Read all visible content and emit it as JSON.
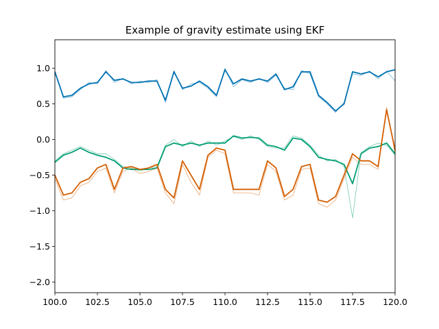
{
  "chart_data": {
    "type": "line",
    "title": "Example of gravity estimate using EKF",
    "xlabel": "",
    "ylabel": "",
    "xlim": [
      100.0,
      120.0
    ],
    "ylim": [
      -2.15,
      1.4
    ],
    "x_ticks": [
      100.0,
      102.5,
      105.0,
      107.5,
      110.0,
      112.5,
      115.0,
      117.5,
      120.0
    ],
    "x_tick_labels": [
      "100.0",
      "102.5",
      "105.0",
      "107.5",
      "110.0",
      "112.5",
      "115.0",
      "117.5",
      "120.0"
    ],
    "y_ticks": [
      1.0,
      0.5,
      0.0,
      -0.5,
      -1.0,
      -1.5,
      -2.0
    ],
    "y_tick_labels": [
      "1.0",
      "0.5",
      "0.0",
      "−0.5",
      "−1.0",
      "−1.5",
      "−2.0"
    ],
    "grid": false,
    "legend": "none",
    "x": [
      100.0,
      100.5,
      101.0,
      101.5,
      102.0,
      102.5,
      103.0,
      103.5,
      104.0,
      104.5,
      105.0,
      105.5,
      106.0,
      106.5,
      107.0,
      107.5,
      108.0,
      108.5,
      109.0,
      109.5,
      110.0,
      110.5,
      111.0,
      111.5,
      112.0,
      112.5,
      113.0,
      113.5,
      114.0,
      114.5,
      115.0,
      115.5,
      116.0,
      116.5,
      117.0,
      117.5,
      118.0,
      118.5,
      119.0,
      119.5,
      120.0
    ],
    "series": [
      {
        "color": "#0072b2",
        "estimate": [
          0.95,
          0.6,
          0.62,
          0.72,
          0.78,
          0.8,
          0.95,
          0.83,
          0.85,
          0.8,
          0.8,
          0.82,
          0.82,
          0.55,
          0.95,
          0.72,
          0.75,
          0.82,
          0.74,
          0.62,
          0.98,
          0.78,
          0.85,
          0.82,
          0.85,
          0.82,
          0.92,
          0.7,
          0.74,
          0.95,
          0.95,
          0.62,
          0.52,
          0.4,
          0.5,
          0.95,
          0.92,
          0.95,
          0.88,
          0.95,
          0.98
        ],
        "raw": [
          0.96,
          0.58,
          0.6,
          0.7,
          0.8,
          0.78,
          0.97,
          0.8,
          0.86,
          0.78,
          0.82,
          0.8,
          0.84,
          0.52,
          0.97,
          0.7,
          0.78,
          0.8,
          0.72,
          0.6,
          1.0,
          0.74,
          0.84,
          0.8,
          0.86,
          0.8,
          0.9,
          0.72,
          0.7,
          0.97,
          0.92,
          0.6,
          0.5,
          0.38,
          0.52,
          0.92,
          0.9,
          0.96,
          0.85,
          0.96,
          0.82
        ]
      },
      {
        "color": "#009e73",
        "estimate": [
          -0.32,
          -0.22,
          -0.18,
          -0.12,
          -0.18,
          -0.22,
          -0.25,
          -0.3,
          -0.4,
          -0.42,
          -0.42,
          -0.42,
          -0.4,
          -0.1,
          -0.05,
          -0.08,
          -0.05,
          -0.08,
          -0.05,
          -0.05,
          -0.05,
          0.05,
          0.02,
          0.03,
          0.02,
          -0.08,
          -0.1,
          -0.15,
          0.02,
          0.0,
          -0.1,
          -0.25,
          -0.28,
          -0.3,
          -0.35,
          -0.62,
          -0.2,
          -0.12,
          -0.1,
          -0.05,
          -0.2
        ],
        "raw": [
          -0.3,
          -0.2,
          -0.15,
          -0.1,
          -0.15,
          -0.2,
          -0.2,
          -0.28,
          -0.38,
          -0.4,
          -0.44,
          -0.4,
          -0.38,
          -0.08,
          0.0,
          -0.1,
          -0.02,
          -0.1,
          -0.02,
          -0.08,
          -0.02,
          0.04,
          0.0,
          0.05,
          0.0,
          -0.1,
          -0.12,
          -0.12,
          0.05,
          0.02,
          -0.08,
          -0.22,
          -0.3,
          -0.28,
          -0.38,
          -1.1,
          -0.18,
          -0.1,
          -0.05,
          -0.08,
          -0.22
        ]
      },
      {
        "color": "#d55e00",
        "estimate": [
          -0.5,
          -0.78,
          -0.75,
          -0.6,
          -0.55,
          -0.4,
          -0.35,
          -0.7,
          -0.4,
          -0.38,
          -0.42,
          -0.4,
          -0.35,
          -0.7,
          -0.82,
          -0.3,
          -0.5,
          -0.7,
          -0.22,
          -0.12,
          -0.15,
          -0.7,
          -0.7,
          -0.7,
          -0.7,
          -0.3,
          -0.4,
          -0.8,
          -0.7,
          -0.38,
          -0.35,
          -0.85,
          -0.88,
          -0.8,
          -0.5,
          -0.2,
          -0.3,
          -0.3,
          -0.38,
          0.42,
          -0.15
        ],
        "raw": [
          -0.55,
          -0.85,
          -0.82,
          -0.65,
          -0.6,
          -0.45,
          -0.4,
          -0.75,
          -0.45,
          -0.4,
          -0.48,
          -0.45,
          -0.4,
          -0.75,
          -0.9,
          -0.35,
          -0.6,
          -0.78,
          -0.25,
          -0.15,
          -0.2,
          -0.75,
          -0.75,
          -0.75,
          -0.78,
          -0.35,
          -0.45,
          -0.85,
          -0.78,
          -0.42,
          -0.4,
          -0.9,
          -0.95,
          -0.85,
          -0.55,
          -0.25,
          -0.35,
          -0.35,
          -0.42,
          0.45,
          -0.2
        ]
      }
    ]
  }
}
